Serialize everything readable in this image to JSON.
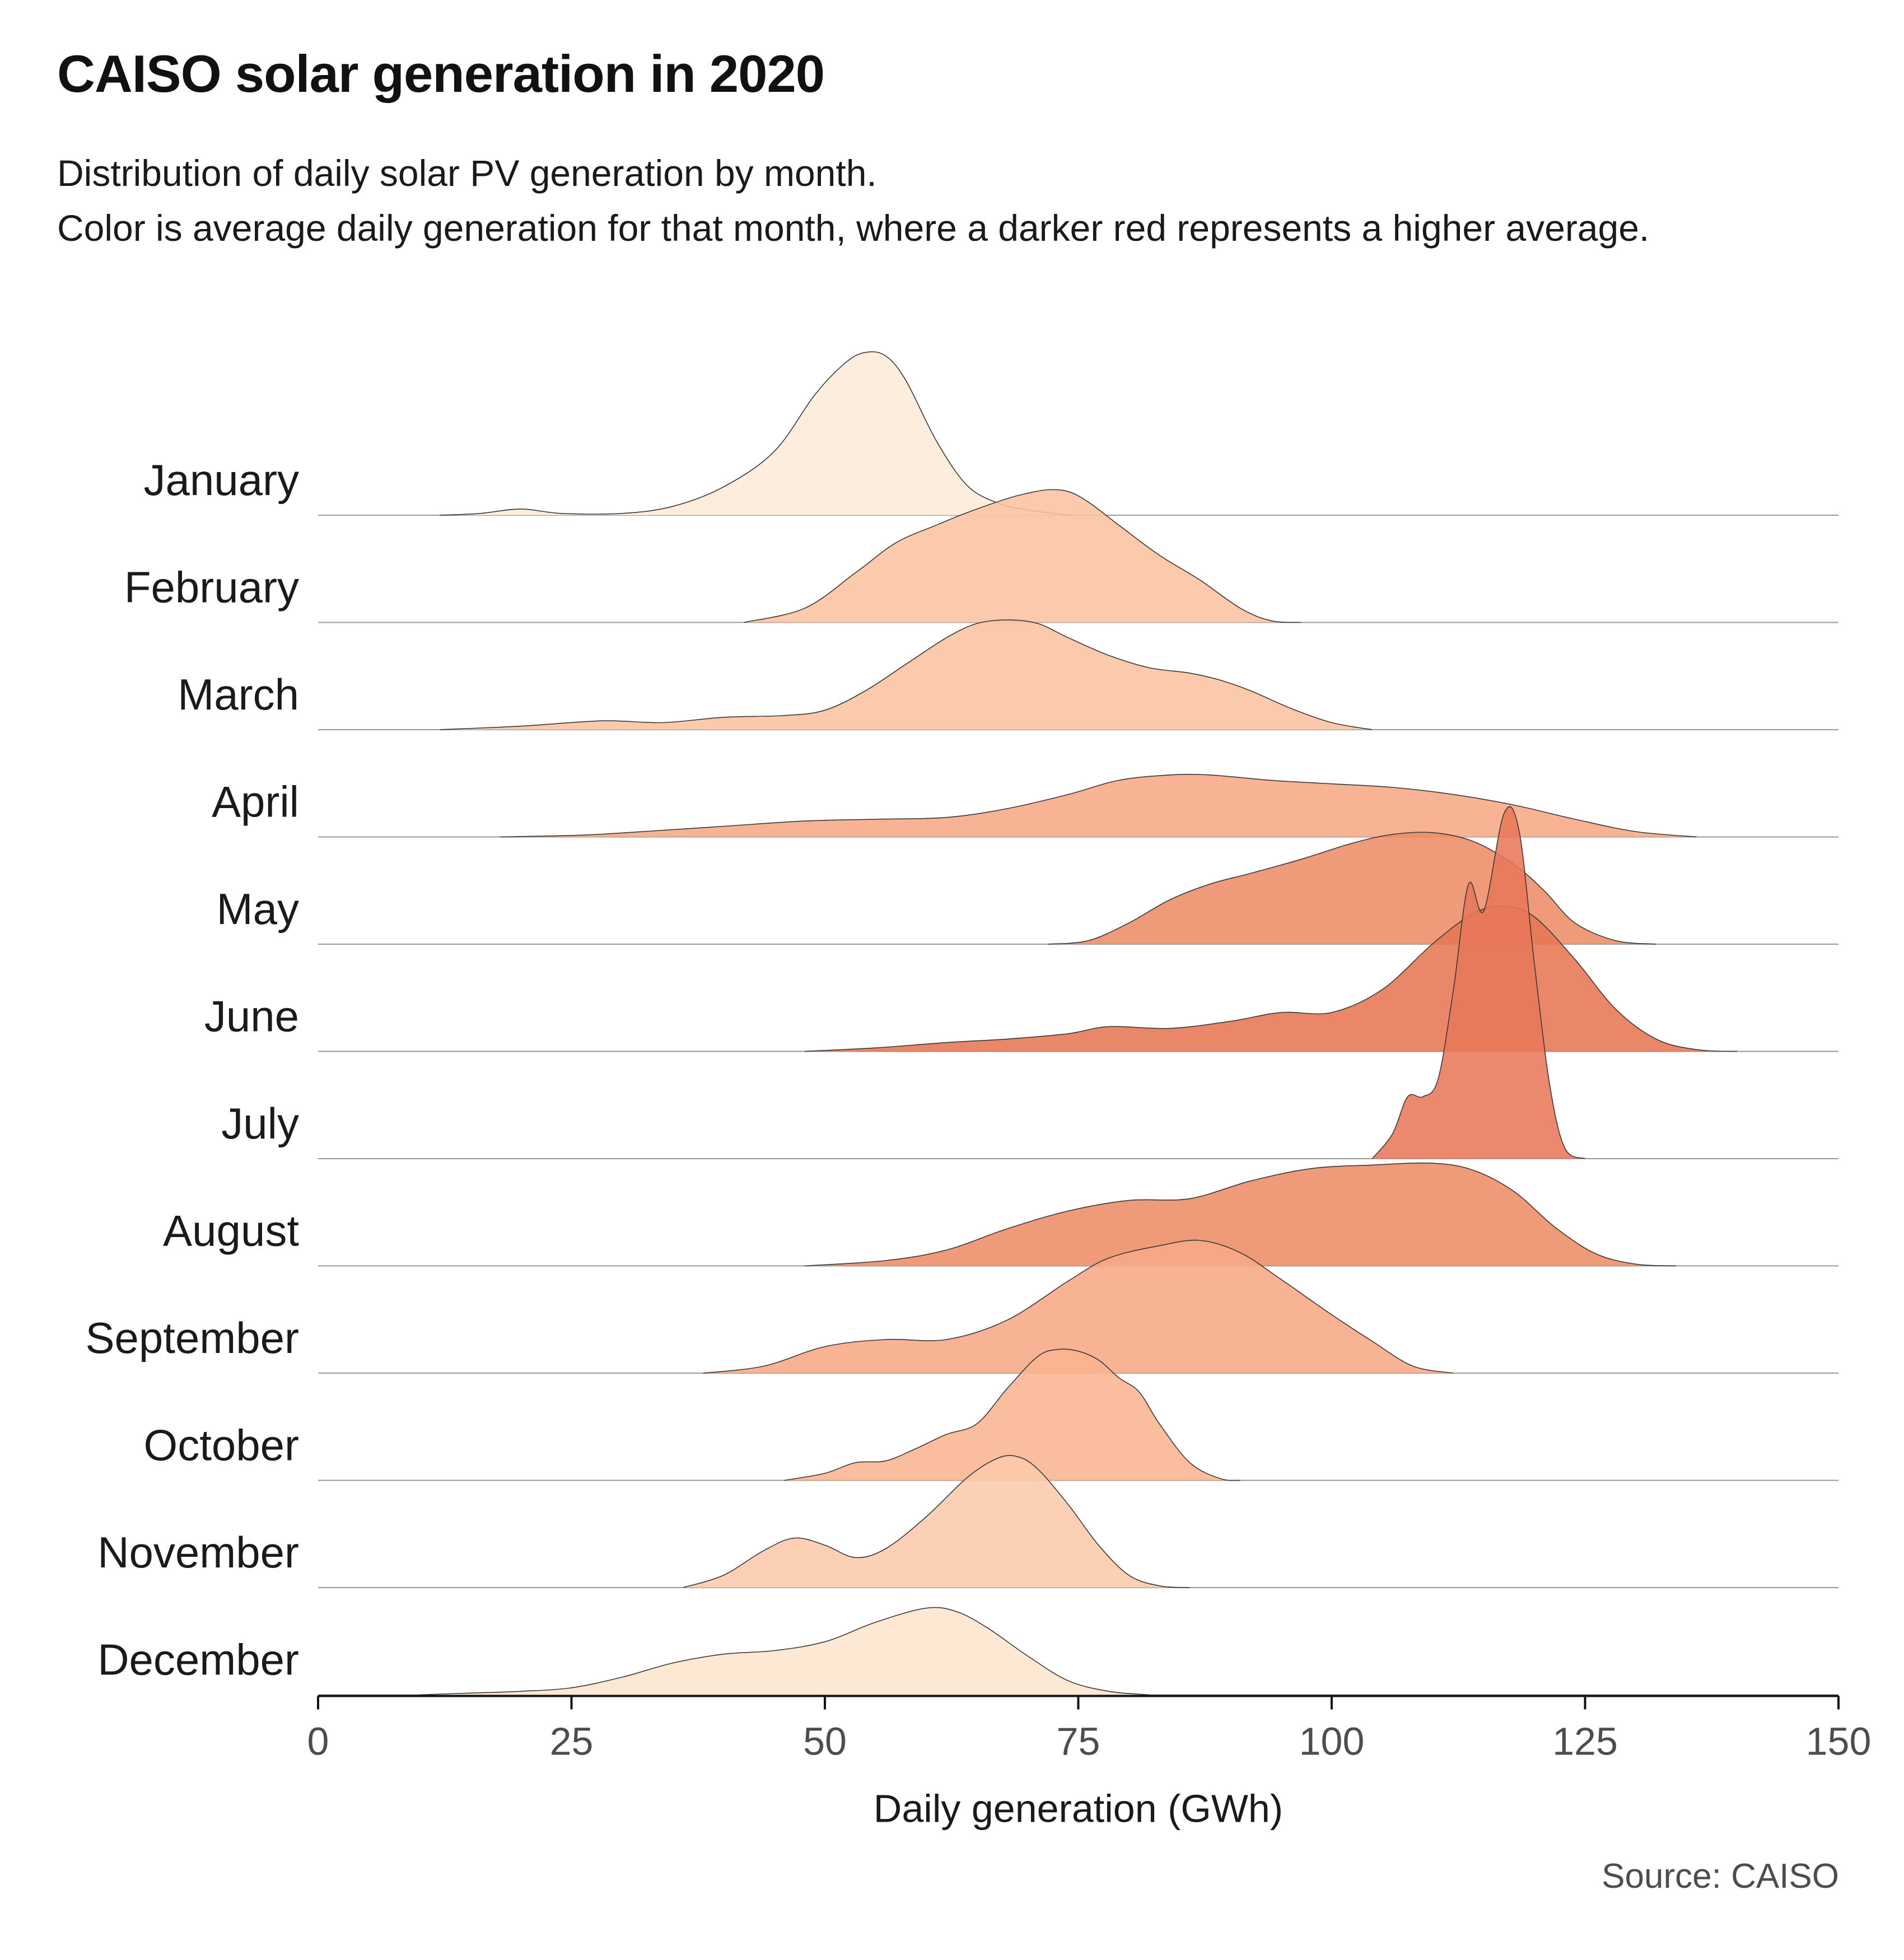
{
  "title": "CAISO solar generation in 2020",
  "subtitle": {
    "line1": "Distribution of daily solar PV generation by month.",
    "line2": "Color is average daily generation for that month, where a darker red represents a higher average."
  },
  "caption": "Source: CAISO",
  "chart_data": {
    "type": "ridgeline",
    "xlabel": "Daily generation (GWh)",
    "xlim": [
      0,
      150
    ],
    "xticks": [
      0,
      25,
      50,
      75,
      100,
      125,
      150
    ],
    "x_tick_labels": [
      "0",
      "25",
      "50",
      "75",
      "100",
      "125",
      "150"
    ],
    "density_max_shown": 1.0,
    "series": [
      {
        "name": "January",
        "color": "#fdebd8",
        "density": [
          [
            12,
            0
          ],
          [
            16,
            0.01
          ],
          [
            20,
            0.035
          ],
          [
            24,
            0.01
          ],
          [
            30,
            0.01
          ],
          [
            35,
            0.05
          ],
          [
            40,
            0.16
          ],
          [
            45,
            0.36
          ],
          [
            49,
            0.68
          ],
          [
            52,
            0.86
          ],
          [
            54,
            0.92
          ],
          [
            56,
            0.9
          ],
          [
            58,
            0.76
          ],
          [
            61,
            0.42
          ],
          [
            64,
            0.17
          ],
          [
            67,
            0.07
          ],
          [
            70,
            0.03
          ],
          [
            74,
            0
          ]
        ]
      },
      {
        "name": "February",
        "color": "#fbc3a0",
        "density": [
          [
            42,
            0
          ],
          [
            48,
            0.08
          ],
          [
            53,
            0.28
          ],
          [
            57,
            0.45
          ],
          [
            61,
            0.55
          ],
          [
            64,
            0.62
          ],
          [
            68,
            0.7
          ],
          [
            70,
            0.73
          ],
          [
            72,
            0.75
          ],
          [
            74,
            0.74
          ],
          [
            76,
            0.68
          ],
          [
            79,
            0.55
          ],
          [
            83,
            0.38
          ],
          [
            87,
            0.24
          ],
          [
            91,
            0.08
          ],
          [
            94,
            0.01
          ],
          [
            97,
            0
          ]
        ]
      },
      {
        "name": "March",
        "color": "#fbc3a0",
        "density": [
          [
            12,
            0
          ],
          [
            20,
            0.02
          ],
          [
            28,
            0.05
          ],
          [
            34,
            0.04
          ],
          [
            40,
            0.07
          ],
          [
            46,
            0.08
          ],
          [
            50,
            0.11
          ],
          [
            54,
            0.22
          ],
          [
            58,
            0.37
          ],
          [
            62,
            0.52
          ],
          [
            65,
            0.6
          ],
          [
            68,
            0.62
          ],
          [
            71,
            0.6
          ],
          [
            74,
            0.52
          ],
          [
            78,
            0.42
          ],
          [
            82,
            0.35
          ],
          [
            86,
            0.32
          ],
          [
            89,
            0.28
          ],
          [
            92,
            0.22
          ],
          [
            96,
            0.12
          ],
          [
            100,
            0.04
          ],
          [
            104,
            0
          ]
        ]
      },
      {
        "name": "April",
        "color": "#f7a986",
        "density": [
          [
            18,
            0
          ],
          [
            26,
            0.01
          ],
          [
            32,
            0.03
          ],
          [
            40,
            0.06
          ],
          [
            48,
            0.09
          ],
          [
            55,
            0.1
          ],
          [
            62,
            0.11
          ],
          [
            68,
            0.16
          ],
          [
            74,
            0.24
          ],
          [
            79,
            0.32
          ],
          [
            84,
            0.35
          ],
          [
            88,
            0.35
          ],
          [
            94,
            0.32
          ],
          [
            100,
            0.3
          ],
          [
            106,
            0.28
          ],
          [
            112,
            0.24
          ],
          [
            118,
            0.18
          ],
          [
            124,
            0.1
          ],
          [
            130,
            0.03
          ],
          [
            136,
            0
          ]
        ]
      },
      {
        "name": "May",
        "color": "#ed8c67",
        "density": [
          [
            72,
            0
          ],
          [
            76,
            0.02
          ],
          [
            80,
            0.12
          ],
          [
            84,
            0.25
          ],
          [
            88,
            0.34
          ],
          [
            92,
            0.4
          ],
          [
            97,
            0.48
          ],
          [
            102,
            0.57
          ],
          [
            106,
            0.62
          ],
          [
            110,
            0.63
          ],
          [
            114,
            0.58
          ],
          [
            118,
            0.45
          ],
          [
            121,
            0.3
          ],
          [
            124,
            0.12
          ],
          [
            128,
            0.02
          ],
          [
            132,
            0
          ]
        ]
      },
      {
        "name": "June",
        "color": "#e67653",
        "density": [
          [
            48,
            0
          ],
          [
            55,
            0.02
          ],
          [
            62,
            0.05
          ],
          [
            68,
            0.07
          ],
          [
            74,
            0.1
          ],
          [
            78,
            0.14
          ],
          [
            84,
            0.13
          ],
          [
            90,
            0.17
          ],
          [
            95,
            0.22
          ],
          [
            100,
            0.22
          ],
          [
            105,
            0.35
          ],
          [
            110,
            0.61
          ],
          [
            114,
            0.78
          ],
          [
            117,
            0.82
          ],
          [
            120,
            0.76
          ],
          [
            124,
            0.52
          ],
          [
            128,
            0.24
          ],
          [
            132,
            0.07
          ],
          [
            136,
            0.01
          ],
          [
            140,
            0
          ]
        ]
      },
      {
        "name": "July",
        "color": "#e87759",
        "density": [
          [
            104,
            0
          ],
          [
            106,
            0.14
          ],
          [
            107.5,
            0.35
          ],
          [
            109,
            0.35
          ],
          [
            110.5,
            0.45
          ],
          [
            112,
            0.95
          ],
          [
            113.5,
            1.55
          ],
          [
            115,
            1.4
          ],
          [
            117,
            1.95
          ],
          [
            118.5,
            1.85
          ],
          [
            120,
            1.1
          ],
          [
            121.5,
            0.42
          ],
          [
            123,
            0.06
          ],
          [
            125,
            0
          ]
        ]
      },
      {
        "name": "August",
        "color": "#ed8c67",
        "density": [
          [
            48,
            0
          ],
          [
            56,
            0.03
          ],
          [
            62,
            0.09
          ],
          [
            68,
            0.21
          ],
          [
            74,
            0.31
          ],
          [
            80,
            0.37
          ],
          [
            86,
            0.38
          ],
          [
            92,
            0.48
          ],
          [
            98,
            0.55
          ],
          [
            104,
            0.57
          ],
          [
            110,
            0.58
          ],
          [
            114,
            0.54
          ],
          [
            118,
            0.42
          ],
          [
            122,
            0.22
          ],
          [
            126,
            0.07
          ],
          [
            130,
            0.01
          ],
          [
            134,
            0
          ]
        ]
      },
      {
        "name": "September",
        "color": "#f7a986",
        "density": [
          [
            38,
            0
          ],
          [
            44,
            0.04
          ],
          [
            50,
            0.15
          ],
          [
            56,
            0.19
          ],
          [
            62,
            0.19
          ],
          [
            68,
            0.3
          ],
          [
            74,
            0.52
          ],
          [
            78,
            0.65
          ],
          [
            83,
            0.72
          ],
          [
            87,
            0.75
          ],
          [
            91,
            0.68
          ],
          [
            95,
            0.53
          ],
          [
            100,
            0.33
          ],
          [
            104,
            0.18
          ],
          [
            108,
            0.04
          ],
          [
            112,
            0
          ]
        ]
      },
      {
        "name": "October",
        "color": "#f9b490",
        "density": [
          [
            46,
            0
          ],
          [
            50,
            0.04
          ],
          [
            53,
            0.1
          ],
          [
            56,
            0.11
          ],
          [
            59,
            0.18
          ],
          [
            62,
            0.26
          ],
          [
            65,
            0.32
          ],
          [
            68,
            0.52
          ],
          [
            71,
            0.7
          ],
          [
            73,
            0.74
          ],
          [
            75,
            0.73
          ],
          [
            77,
            0.68
          ],
          [
            79,
            0.58
          ],
          [
            81,
            0.5
          ],
          [
            83,
            0.32
          ],
          [
            86,
            0.1
          ],
          [
            89,
            0.01
          ],
          [
            91,
            0
          ]
        ]
      },
      {
        "name": "November",
        "color": "#fbcaaa",
        "density": [
          [
            36,
            0
          ],
          [
            40,
            0.07
          ],
          [
            44,
            0.21
          ],
          [
            47,
            0.28
          ],
          [
            50,
            0.24
          ],
          [
            53,
            0.17
          ],
          [
            56,
            0.22
          ],
          [
            60,
            0.4
          ],
          [
            64,
            0.62
          ],
          [
            67,
            0.73
          ],
          [
            69,
            0.74
          ],
          [
            71,
            0.67
          ],
          [
            74,
            0.47
          ],
          [
            77,
            0.24
          ],
          [
            80,
            0.07
          ],
          [
            83,
            0.01
          ],
          [
            86,
            0
          ]
        ]
      },
      {
        "name": "December",
        "color": "#fde5ce",
        "density": [
          [
            10,
            0
          ],
          [
            15,
            0.01
          ],
          [
            20,
            0.02
          ],
          [
            25,
            0.04
          ],
          [
            30,
            0.1
          ],
          [
            35,
            0.18
          ],
          [
            40,
            0.23
          ],
          [
            45,
            0.25
          ],
          [
            50,
            0.3
          ],
          [
            55,
            0.41
          ],
          [
            60,
            0.49
          ],
          [
            63,
            0.47
          ],
          [
            66,
            0.38
          ],
          [
            70,
            0.22
          ],
          [
            74,
            0.08
          ],
          [
            78,
            0.02
          ],
          [
            82,
            0
          ]
        ]
      }
    ]
  }
}
